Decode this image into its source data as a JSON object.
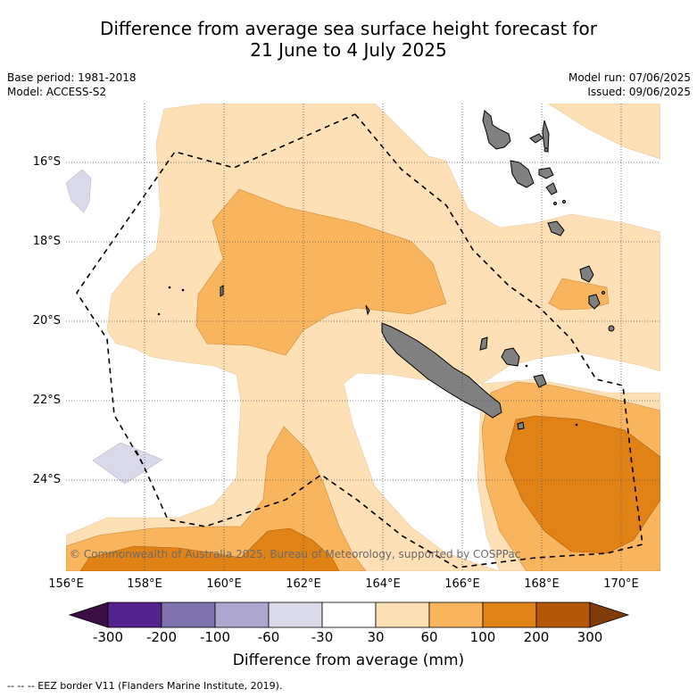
{
  "title": {
    "line1": "Difference from average sea surface height forecast for",
    "line2": "21 June to 4 July 2025"
  },
  "meta": {
    "base_period": "Base period: 1981-2018",
    "model": "Model: ACCESS-S2",
    "model_run": "Model run: 07/06/2025",
    "issued": "Issued: 09/06/2025"
  },
  "map": {
    "lat_labels": [
      "16°S",
      "18°S",
      "20°S",
      "22°S",
      "24°S"
    ],
    "lon_labels": [
      "156°E",
      "158°E",
      "160°E",
      "162°E",
      "164°E",
      "166°E",
      "168°E",
      "170°E"
    ],
    "credit": "© Commonwealth of Australia 2025, Bureau of Meteorology, supported by COSPPac",
    "colors": {
      "band_30_60": "#fde0b6",
      "band_60_100": "#f9b55e",
      "band_100_200": "#e08216",
      "band_neg_30_60": "#d9d9ea",
      "land": "#808080",
      "eez": "#000000"
    }
  },
  "colorbar": {
    "ticks": [
      "-300",
      "-200",
      "-100",
      "-60",
      "-30",
      "30",
      "60",
      "100",
      "200",
      "300"
    ],
    "colors": [
      "#3b0f45",
      "#54228d",
      "#7f73ae",
      "#ada6cf",
      "#d9d9ea",
      "#ffffff",
      "#fde0b6",
      "#f9b55e",
      "#e08216",
      "#b35806",
      "#7f3b08"
    ],
    "title": "Difference from average (mm)"
  },
  "footnote": "-- -- -- EEZ border V11 (Flanders Marine Institute, 2019)."
}
